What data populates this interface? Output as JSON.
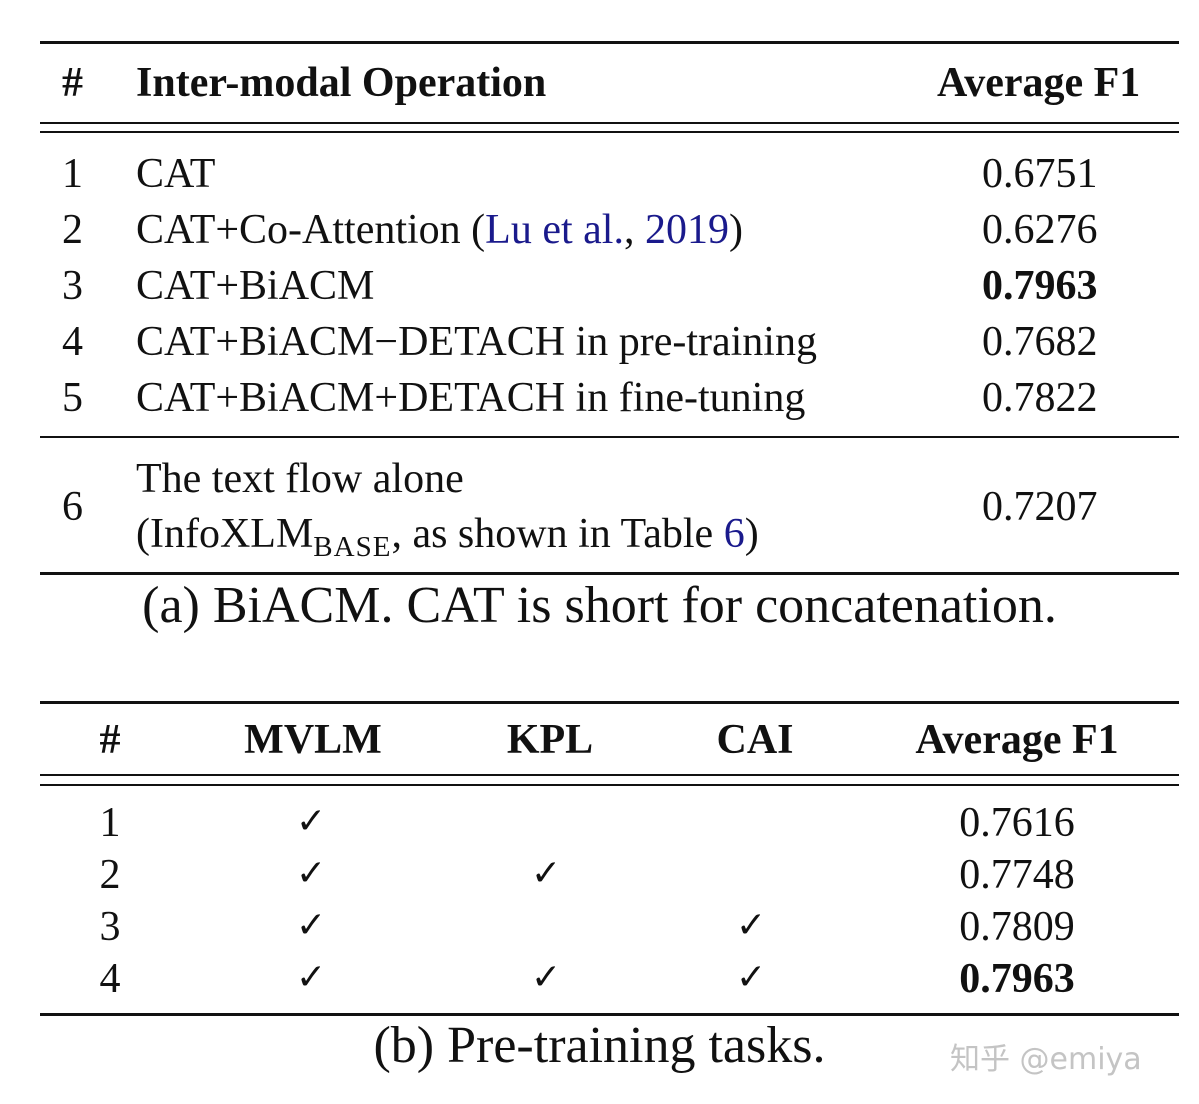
{
  "table_a": {
    "headers": [
      "#",
      "Inter-modal Operation",
      "Average F1"
    ],
    "rows": [
      {
        "num": "1",
        "op": "CAT",
        "f1": "0.6751"
      },
      {
        "num": "2",
        "op_pre": "CAT+Co-Attention (",
        "op_cite_author": "Lu et al.",
        "op_cite_sep": ", ",
        "op_cite_year": "2019",
        "op_post": ")",
        "f1": "0.6276"
      },
      {
        "num": "3",
        "op": "CAT+BiACM",
        "f1": "0.7963"
      },
      {
        "num": "4",
        "op": "CAT+BiACM−DETACH in pre-training",
        "f1": "0.7682"
      },
      {
        "num": "5",
        "op": "CAT+BiACM+DETACH in fine-tuning",
        "f1": "0.7822"
      },
      {
        "num": "6",
        "op_line1": "The text flow alone",
        "op_line2_pre": "(InfoXLM",
        "op_line2_sub": "BASE",
        "op_line2_mid": ", as shown in Table ",
        "op_line2_ref": "6",
        "op_line2_post": ")",
        "f1": "0.7207"
      }
    ],
    "caption": "(a) BiACM. CAT is short for concatenation."
  },
  "table_b": {
    "headers": [
      "#",
      "MVLM",
      "KPL",
      "CAI",
      "Average F1"
    ],
    "check_glyph": "✓",
    "rows": [
      {
        "num": "1",
        "mvlm": true,
        "kpl": false,
        "cai": false,
        "f1": "0.7616"
      },
      {
        "num": "2",
        "mvlm": true,
        "kpl": true,
        "cai": false,
        "f1": "0.7748"
      },
      {
        "num": "3",
        "mvlm": true,
        "kpl": false,
        "cai": true,
        "f1": "0.7809"
      },
      {
        "num": "4",
        "mvlm": true,
        "kpl": true,
        "cai": true,
        "f1": "0.7963"
      }
    ],
    "caption": "(b) Pre-training tasks."
  },
  "watermark": "知乎 @emiya"
}
